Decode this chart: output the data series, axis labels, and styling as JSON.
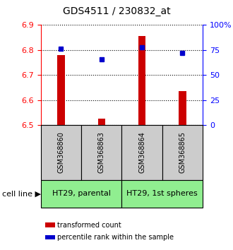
{
  "title": "GDS4511 / 230832_at",
  "samples": [
    "GSM368860",
    "GSM368863",
    "GSM368864",
    "GSM368865"
  ],
  "bar_values": [
    6.78,
    6.525,
    6.855,
    6.635
  ],
  "bar_base": 6.5,
  "percentile_values": [
    76,
    66,
    78,
    72
  ],
  "left_ylim": [
    6.5,
    6.9
  ],
  "right_ylim": [
    0,
    100
  ],
  "left_yticks": [
    6.5,
    6.6,
    6.7,
    6.8,
    6.9
  ],
  "right_yticks": [
    0,
    25,
    50,
    75,
    100
  ],
  "right_yticklabels": [
    "0",
    "25",
    "50",
    "75",
    "100%"
  ],
  "bar_color": "#cc0000",
  "dot_color": "#0000cc",
  "cell_lines": [
    "HT29, parental",
    "HT29, 1st spheres"
  ],
  "cell_line_bg": "#90ee90",
  "sample_box_bg": "#cccccc",
  "legend_bar_label": "transformed count",
  "legend_dot_label": "percentile rank within the sample",
  "cell_line_label": "cell line",
  "title_fontsize": 10,
  "tick_fontsize": 8,
  "sample_fontsize": 7,
  "cell_line_fontsize": 8,
  "legend_fontsize": 7
}
